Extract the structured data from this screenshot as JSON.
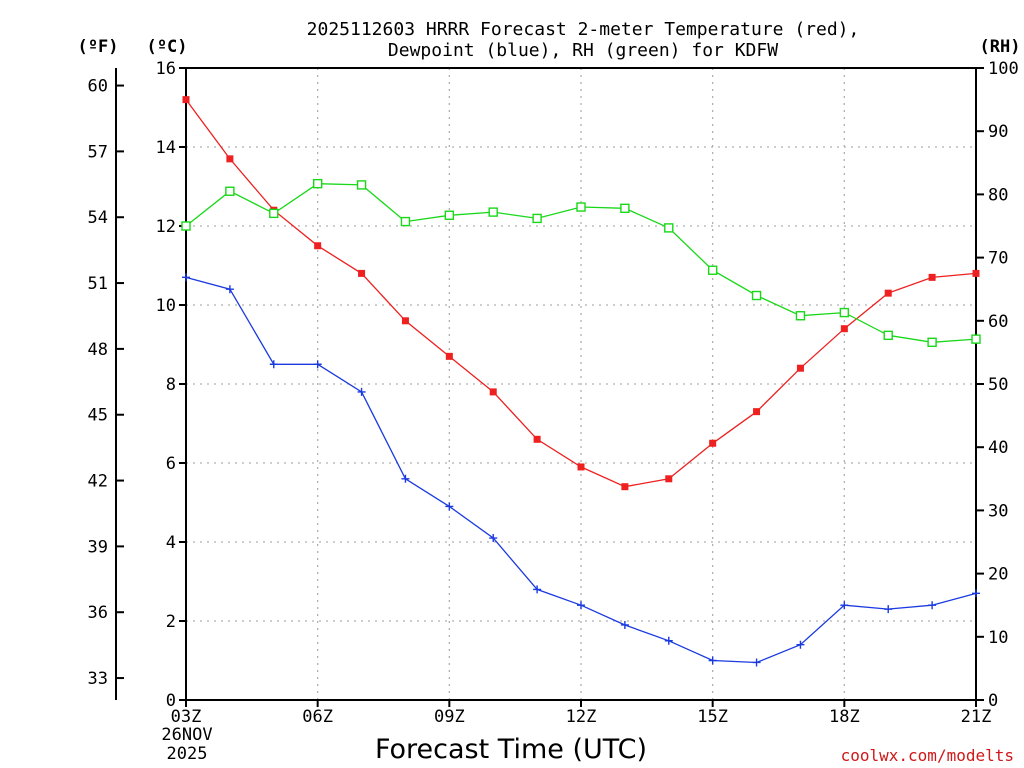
{
  "chart_data": {
    "type": "line",
    "title": [
      "2025112603 HRRR Forecast 2-meter Temperature (red),",
      "Dewpoint (blue), RH (green) for KDFW"
    ],
    "xlabel": "Forecast Time (UTC)",
    "x_ticks": [
      "03Z",
      "06Z",
      "09Z",
      "12Z",
      "15Z",
      "18Z",
      "21Z"
    ],
    "date_label": [
      "26NOV",
      "2025"
    ],
    "hours": [
      3,
      4,
      5,
      6,
      7,
      8,
      9,
      10,
      11,
      12,
      13,
      14,
      15,
      16,
      17,
      18,
      19,
      20,
      21
    ],
    "left_axis_celsius": {
      "unit_label": "(ºC)",
      "ylim": [
        0,
        16
      ],
      "ticks": [
        "0",
        "2",
        "4",
        "6",
        "8",
        "10",
        "12",
        "14",
        "16"
      ]
    },
    "left_axis_fahrenheit": {
      "unit_label": "(ºF)",
      "ticks": [
        "33",
        "36",
        "39",
        "42",
        "45",
        "48",
        "51",
        "54",
        "57",
        "60"
      ]
    },
    "right_axis_rh": {
      "unit_label": "(RH)",
      "ylim": [
        0,
        100
      ],
      "ticks": [
        "0",
        "10",
        "20",
        "30",
        "40",
        "50",
        "60",
        "70",
        "80",
        "90",
        "100"
      ]
    },
    "series": [
      {
        "name": "Temperature",
        "axis": "celsius",
        "color": "#ee2020",
        "marker": "filled-square",
        "values": [
          15.2,
          13.7,
          12.4,
          11.5,
          10.8,
          9.6,
          8.7,
          7.8,
          6.6,
          5.9,
          5.4,
          5.6,
          6.5,
          7.3,
          8.4,
          9.4,
          10.3,
          10.7,
          10.8
        ]
      },
      {
        "name": "Dewpoint",
        "axis": "celsius",
        "color": "#1a3ae0",
        "marker": "plus",
        "values": [
          10.7,
          10.4,
          8.5,
          8.5,
          7.8,
          5.6,
          4.9,
          4.1,
          2.8,
          2.4,
          1.9,
          1.5,
          1.0,
          0.95,
          1.4,
          2.4,
          2.3,
          2.4,
          2.7
        ]
      },
      {
        "name": "RH",
        "axis": "rh",
        "color": "#18d818",
        "marker": "open-square",
        "values": [
          75,
          80.5,
          77,
          81.7,
          81.5,
          75.7,
          76.7,
          77.2,
          76.2,
          78,
          77.8,
          74.7,
          68,
          64,
          60.8,
          61.3,
          57.7,
          56.6,
          57.1
        ]
      }
    ]
  },
  "credit": "coolwx.com/modelts"
}
